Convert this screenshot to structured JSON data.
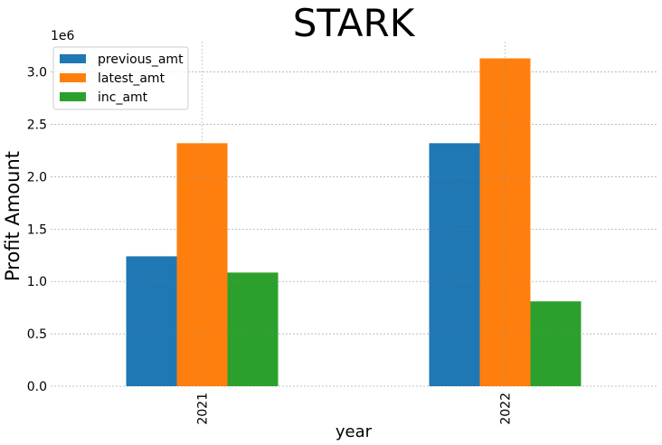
{
  "chart_data": {
    "type": "bar",
    "title": "STARK",
    "xlabel": "year",
    "ylabel": "Profit Amount",
    "y_multiplier_label": "1e6",
    "categories": [
      "2021",
      "2022"
    ],
    "series": [
      {
        "name": "previous_amt",
        "color": "#1f77b4",
        "values": [
          1240000,
          2320000
        ]
      },
      {
        "name": "latest_amt",
        "color": "#ff7f0e",
        "values": [
          2320000,
          3130000
        ]
      },
      {
        "name": "inc_amt",
        "color": "#2ca02c",
        "values": [
          1085000,
          810000
        ]
      }
    ],
    "ylim": [
      0,
      3290000
    ],
    "yticks": [
      0,
      500000,
      1000000,
      1500000,
      2000000,
      2500000,
      3000000
    ],
    "ytick_labels": [
      "0.0",
      "0.5",
      "1.0",
      "1.5",
      "2.0",
      "2.5",
      "3.0"
    ],
    "grid": true,
    "legend_position": "top-left"
  }
}
